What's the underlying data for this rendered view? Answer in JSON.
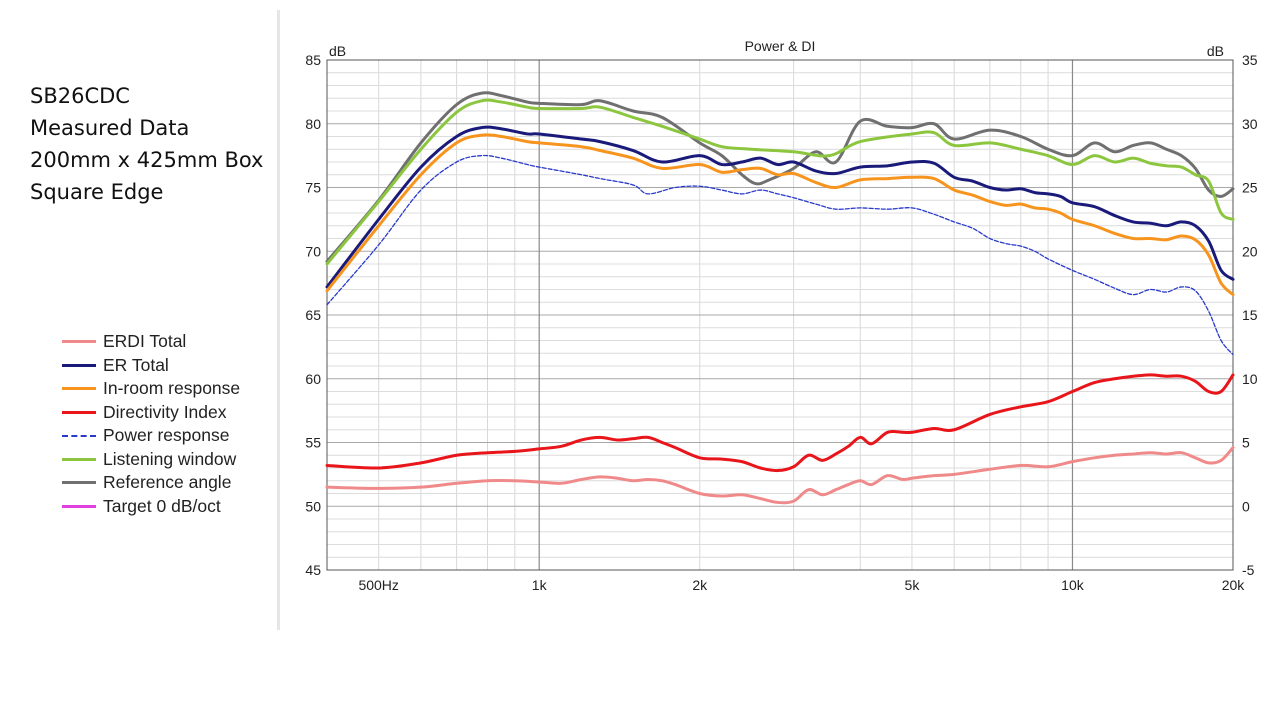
{
  "notes": [
    "SB26CDC",
    "Measured Data",
    "",
    "200mm x 425mm Box",
    "Square Edge"
  ],
  "legend": [
    {
      "label": "ERDI Total",
      "color": "#f08a8a",
      "dash": false
    },
    {
      "label": "ER Total",
      "color": "#1a1a7a",
      "dash": false
    },
    {
      "label": "In-room response",
      "color": "#f7941d",
      "dash": false
    },
    {
      "label": "Directivity Index",
      "color": "#e8151b",
      "dash": false
    },
    {
      "label": "Power response",
      "color": "#2a3acb",
      "dash": true
    },
    {
      "label": "Listening window",
      "color": "#8cc63f",
      "dash": false
    },
    {
      "label": "Reference angle",
      "color": "#707070",
      "dash": false
    },
    {
      "label": "Target 0 dB/oct",
      "color": "#e040e0",
      "dash": false
    }
  ],
  "chart_data": {
    "type": "line",
    "title": "Power & DI",
    "ylabel": "dB",
    "y2label": "dB",
    "xscale": "log",
    "xlim": [
      400,
      20000
    ],
    "ylim": [
      45,
      85
    ],
    "y2lim": [
      -5,
      35
    ],
    "xticks": [
      {
        "v": 500,
        "label": "500Hz"
      },
      {
        "v": 1000,
        "label": "1k"
      },
      {
        "v": 2000,
        "label": "2k"
      },
      {
        "v": 5000,
        "label": "5k"
      },
      {
        "v": 10000,
        "label": "10k"
      },
      {
        "v": 20000,
        "label": "20k"
      }
    ],
    "yticks": [
      45,
      50,
      55,
      60,
      65,
      70,
      75,
      80,
      85
    ],
    "y2ticks": [
      -5,
      0,
      5,
      10,
      15,
      20,
      25,
      30,
      35
    ],
    "grid": true,
    "legend_position": "left",
    "series": [
      {
        "name": "Reference angle",
        "axis": "left",
        "x": [
          400,
          500,
          600,
          700,
          780,
          850,
          950,
          1000,
          1200,
          1300,
          1500,
          1700,
          2000,
          2200,
          2400,
          2550,
          2700,
          3000,
          3300,
          3600,
          4000,
          4500,
          5000,
          5500,
          6000,
          7000,
          8000,
          9000,
          10000,
          11000,
          12000,
          13000,
          14000,
          15000,
          16000,
          17000,
          18000,
          19000,
          20000
        ],
        "y": [
          69.2,
          74.0,
          78.5,
          81.5,
          82.4,
          82.2,
          81.7,
          81.6,
          81.5,
          81.8,
          81.0,
          80.5,
          78.5,
          77.5,
          76.0,
          75.3,
          75.6,
          76.5,
          77.8,
          77.0,
          80.2,
          79.8,
          79.7,
          80.0,
          78.8,
          79.5,
          79.0,
          78.0,
          77.5,
          78.5,
          77.8,
          78.3,
          78.5,
          78.0,
          77.5,
          76.5,
          74.8,
          74.3,
          74.9
        ]
      },
      {
        "name": "Listening window",
        "axis": "left",
        "x": [
          400,
          500,
          600,
          700,
          780,
          850,
          950,
          1000,
          1200,
          1300,
          1500,
          1700,
          2000,
          2200,
          2500,
          3000,
          3500,
          4000,
          5000,
          5500,
          6000,
          7000,
          8000,
          9000,
          10000,
          11000,
          12000,
          13000,
          14000,
          15000,
          16000,
          17000,
          18000,
          19000,
          20000
        ],
        "y": [
          69.0,
          73.9,
          78.0,
          80.9,
          81.8,
          81.7,
          81.3,
          81.2,
          81.2,
          81.3,
          80.5,
          79.8,
          78.8,
          78.2,
          78.0,
          77.8,
          77.5,
          78.6,
          79.2,
          79.3,
          78.3,
          78.5,
          78.0,
          77.5,
          76.8,
          77.5,
          77.0,
          77.3,
          76.9,
          76.7,
          76.6,
          76.0,
          75.5,
          73.0,
          72.5
        ]
      },
      {
        "name": "ER Total",
        "axis": "left",
        "x": [
          400,
          500,
          600,
          700,
          780,
          850,
          950,
          1000,
          1200,
          1300,
          1500,
          1700,
          2000,
          2200,
          2400,
          2600,
          2800,
          3000,
          3300,
          3600,
          4000,
          4500,
          5000,
          5500,
          6000,
          6500,
          7000,
          7500,
          8000,
          8500,
          9000,
          9500,
          10000,
          11000,
          12000,
          13000,
          14000,
          15000,
          16000,
          17000,
          18000,
          19000,
          20000
        ],
        "y": [
          67.2,
          72.5,
          76.6,
          79.0,
          79.7,
          79.6,
          79.2,
          79.2,
          78.8,
          78.6,
          77.9,
          77.0,
          77.5,
          76.8,
          77.0,
          77.3,
          76.8,
          77.0,
          76.3,
          76.1,
          76.6,
          76.7,
          77.0,
          76.9,
          75.8,
          75.5,
          75.0,
          74.8,
          74.9,
          74.6,
          74.5,
          74.3,
          73.8,
          73.5,
          72.8,
          72.3,
          72.2,
          72.0,
          72.3,
          72.0,
          70.8,
          68.5,
          67.8
        ]
      },
      {
        "name": "In-room response",
        "axis": "left",
        "x": [
          400,
          500,
          600,
          700,
          780,
          850,
          950,
          1000,
          1200,
          1300,
          1500,
          1700,
          2000,
          2200,
          2400,
          2600,
          2800,
          3000,
          3300,
          3600,
          4000,
          4500,
          5000,
          5500,
          6000,
          6500,
          7000,
          7500,
          8000,
          8500,
          9000,
          9500,
          10000,
          11000,
          12000,
          13000,
          14000,
          15000,
          16000,
          17000,
          18000,
          19000,
          20000
        ],
        "y": [
          66.9,
          72.0,
          76.0,
          78.5,
          79.1,
          79.0,
          78.6,
          78.5,
          78.2,
          77.9,
          77.3,
          76.5,
          76.8,
          76.2,
          76.4,
          76.5,
          76.0,
          76.1,
          75.4,
          75.0,
          75.6,
          75.7,
          75.8,
          75.7,
          74.8,
          74.4,
          73.9,
          73.6,
          73.7,
          73.4,
          73.3,
          73.0,
          72.5,
          72.0,
          71.4,
          71.0,
          71.0,
          70.9,
          71.2,
          70.9,
          69.7,
          67.5,
          66.6
        ]
      },
      {
        "name": "Power response",
        "axis": "left",
        "dashed": true,
        "x": [
          400,
          500,
          600,
          700,
          780,
          850,
          950,
          1000,
          1200,
          1300,
          1500,
          1600,
          1800,
          2000,
          2200,
          2400,
          2600,
          2800,
          3000,
          3300,
          3600,
          4000,
          4500,
          5000,
          5500,
          6000,
          6500,
          7000,
          7500,
          8000,
          8500,
          9000,
          10000,
          11000,
          12000,
          13000,
          14000,
          15000,
          16000,
          17000,
          18000,
          19000,
          20000
        ],
        "y": [
          65.8,
          70.5,
          74.8,
          77.0,
          77.5,
          77.3,
          76.8,
          76.6,
          76.0,
          75.7,
          75.2,
          74.5,
          75.0,
          75.1,
          74.8,
          74.5,
          74.8,
          74.5,
          74.2,
          73.7,
          73.3,
          73.4,
          73.3,
          73.4,
          72.9,
          72.3,
          71.8,
          71.0,
          70.6,
          70.4,
          70.0,
          69.4,
          68.5,
          67.8,
          67.1,
          66.6,
          67.0,
          66.8,
          67.2,
          66.9,
          65.3,
          63.0,
          61.9
        ]
      },
      {
        "name": "Directivity Index",
        "axis": "right",
        "x": [
          400,
          500,
          600,
          700,
          800,
          900,
          1000,
          1100,
          1200,
          1300,
          1400,
          1500,
          1600,
          1700,
          1800,
          2000,
          2200,
          2400,
          2600,
          2800,
          3000,
          3200,
          3400,
          3600,
          3800,
          4000,
          4200,
          4500,
          4800,
          5000,
          5500,
          6000,
          7000,
          8000,
          9000,
          10000,
          11000,
          12000,
          13000,
          14000,
          15000,
          16000,
          17000,
          18000,
          19000,
          20000
        ],
        "y": [
          3.2,
          3.0,
          3.4,
          4.0,
          4.2,
          4.3,
          4.5,
          4.7,
          5.2,
          5.4,
          5.2,
          5.3,
          5.4,
          5.0,
          4.6,
          3.8,
          3.7,
          3.5,
          3.0,
          2.8,
          3.1,
          4.0,
          3.6,
          4.1,
          4.7,
          5.4,
          4.9,
          5.8,
          5.8,
          5.8,
          6.1,
          6.0,
          7.2,
          7.8,
          8.2,
          9.0,
          9.7,
          10.0,
          10.2,
          10.3,
          10.2,
          10.2,
          9.8,
          9.0,
          9.0,
          10.3
        ]
      },
      {
        "name": "ERDI Total",
        "axis": "right",
        "x": [
          400,
          500,
          600,
          700,
          800,
          900,
          1000,
          1100,
          1200,
          1300,
          1400,
          1500,
          1600,
          1700,
          1800,
          2000,
          2200,
          2400,
          2600,
          2800,
          3000,
          3200,
          3400,
          3600,
          3800,
          4000,
          4200,
          4500,
          4800,
          5000,
          5500,
          6000,
          7000,
          8000,
          9000,
          10000,
          11000,
          12000,
          13000,
          14000,
          15000,
          16000,
          17000,
          18000,
          19000,
          20000
        ],
        "y": [
          1.5,
          1.4,
          1.5,
          1.8,
          2.0,
          2.0,
          1.9,
          1.8,
          2.1,
          2.3,
          2.2,
          2.0,
          2.1,
          2.0,
          1.7,
          1.0,
          0.8,
          0.9,
          0.6,
          0.3,
          0.4,
          1.3,
          0.9,
          1.3,
          1.7,
          2.0,
          1.7,
          2.4,
          2.1,
          2.2,
          2.4,
          2.5,
          2.9,
          3.2,
          3.1,
          3.5,
          3.8,
          4.0,
          4.1,
          4.2,
          4.1,
          4.2,
          3.8,
          3.4,
          3.6,
          4.6
        ]
      }
    ]
  }
}
